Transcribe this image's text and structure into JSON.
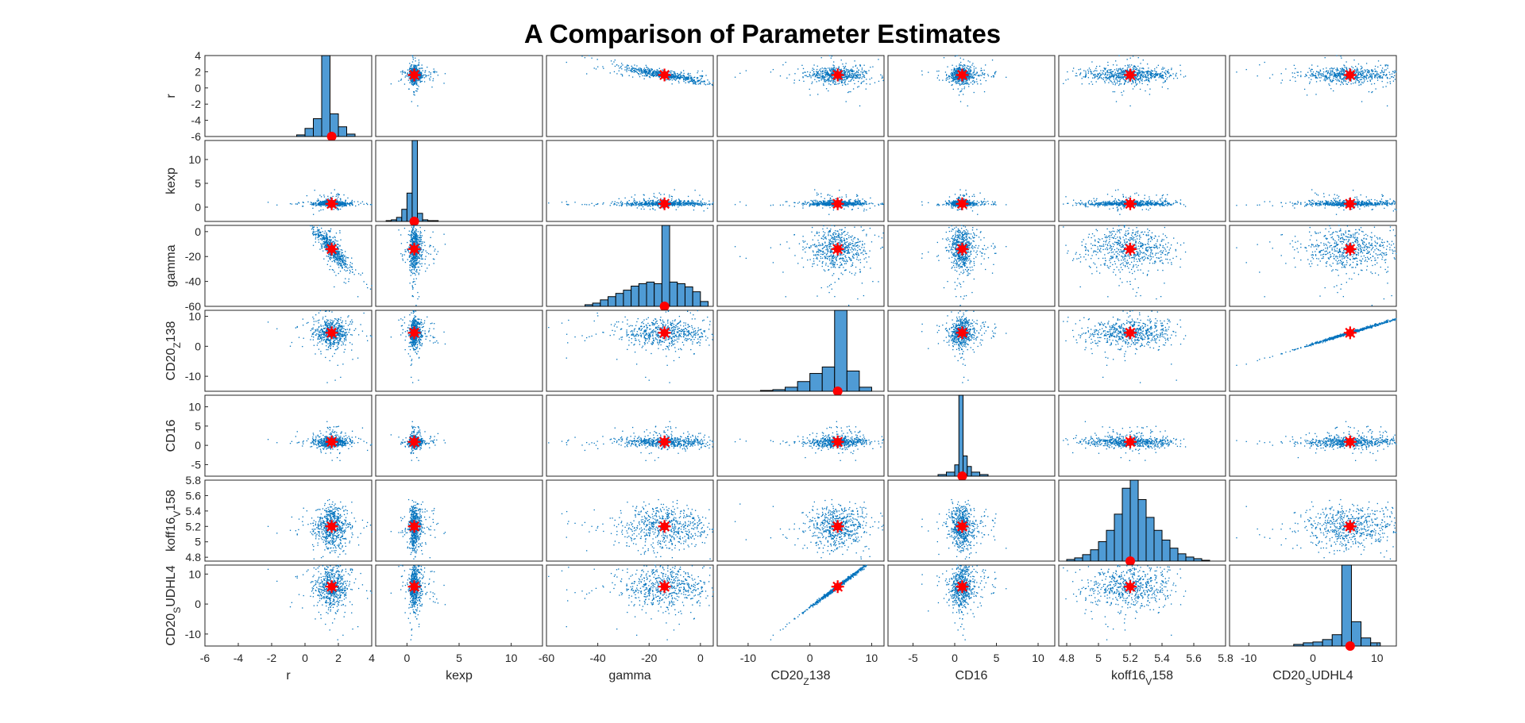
{
  "chart_data": {
    "type": "scatter",
    "title": "A Comparison of Parameter Estimates",
    "colors": {
      "points": "#0072BD",
      "bars": "#4F9BD5",
      "marker": "#FF0000"
    },
    "variables": [
      {
        "id": "r",
        "label": "r",
        "sub": "",
        "suf": "",
        "mean": 1.6,
        "sd": 0.45,
        "xlim": [
          -6,
          4
        ],
        "xticks": [
          -6,
          -4,
          -2,
          0,
          2,
          4
        ],
        "ylim": [
          -6,
          4
        ],
        "yticks": [
          -6,
          -4,
          -2,
          0,
          2,
          4
        ]
      },
      {
        "id": "kexp",
        "label": "kexp",
        "sub": "",
        "suf": "",
        "mean": 0.7,
        "sd": 0.6,
        "xlim": [
          -3,
          13
        ],
        "xticks": [
          0,
          5,
          10
        ],
        "ylim": [
          -3,
          14
        ],
        "yticks": [
          0,
          5,
          10
        ]
      },
      {
        "id": "gamma",
        "label": "gamma",
        "sub": "",
        "suf": "",
        "mean": -14,
        "sd": 10,
        "xlim": [
          -60,
          5
        ],
        "xticks": [
          -60,
          -40,
          -20,
          0
        ],
        "ylim": [
          -60,
          5
        ],
        "yticks": [
          -60,
          -40,
          -20,
          0
        ]
      },
      {
        "id": "cd20z138",
        "label": "CD20",
        "sub": "Z",
        "suf": "138",
        "mean": 4.5,
        "sd": 2.5,
        "xlim": [
          -15,
          12
        ],
        "xticks": [
          -10,
          0,
          10
        ],
        "ylim": [
          -15,
          12
        ],
        "yticks": [
          -10,
          0,
          10
        ]
      },
      {
        "id": "cd16",
        "label": "CD16",
        "sub": "",
        "suf": "",
        "mean": 0.9,
        "sd": 0.8,
        "xlim": [
          -8,
          12
        ],
        "xticks": [
          -5,
          0,
          5,
          10
        ],
        "ylim": [
          -8,
          13
        ],
        "yticks": [
          -5,
          0,
          5,
          10
        ]
      },
      {
        "id": "koff16v158",
        "label": "koff16",
        "sub": "V",
        "suf": "158",
        "mean": 5.2,
        "sd": 0.14,
        "xlim": [
          4.75,
          5.8
        ],
        "xticks": [
          4.8,
          5,
          5.2,
          5.4,
          5.6,
          5.8
        ],
        "ylim": [
          4.75,
          5.8
        ],
        "yticks": [
          4.8,
          5,
          5.2,
          5.4,
          5.6,
          5.8
        ]
      },
      {
        "id": "cd20sudhl4",
        "label": "CD20",
        "sub": "S",
        "suf": "UDHL4",
        "mean": 5.8,
        "sd": 2.0,
        "xlim": [
          -13,
          13
        ],
        "xticks": [
          -10,
          0,
          10
        ],
        "ylim": [
          -14,
          13
        ],
        "yticks": [
          -10,
          0,
          10
        ]
      }
    ],
    "histograms": [
      {
        "edges": [
          -0.5,
          0,
          0.5,
          1,
          1.5,
          2,
          2.5,
          3
        ],
        "heights": [
          0.02,
          0.1,
          0.22,
          1.0,
          0.28,
          0.12,
          0.03
        ]
      },
      {
        "edges": [
          -2,
          -1.5,
          -1,
          -0.5,
          0,
          0.5,
          1,
          1.5,
          2,
          2.5,
          3
        ],
        "heights": [
          0.01,
          0.02,
          0.05,
          0.15,
          0.35,
          1.0,
          0.1,
          0.02,
          0.01,
          0.01
        ]
      },
      {
        "edges": [
          -45,
          -42,
          -39,
          -36,
          -33,
          -30,
          -27,
          -24,
          -21,
          -18,
          -15,
          -12,
          -9,
          -6,
          -3,
          0,
          3
        ],
        "heights": [
          0.02,
          0.04,
          0.08,
          0.12,
          0.16,
          0.2,
          0.25,
          0.28,
          0.3,
          0.28,
          1.0,
          0.3,
          0.28,
          0.24,
          0.18,
          0.06
        ]
      },
      {
        "edges": [
          -8,
          -6,
          -4,
          -2,
          0,
          2,
          4,
          6,
          8,
          10
        ],
        "heights": [
          0.01,
          0.02,
          0.05,
          0.12,
          0.22,
          0.3,
          1.0,
          0.25,
          0.05
        ]
      },
      {
        "edges": [
          -2,
          -1,
          0,
          0.5,
          1,
          1.5,
          2,
          3,
          4
        ],
        "heights": [
          0.02,
          0.05,
          0.14,
          1.0,
          0.25,
          0.12,
          0.05,
          0.02
        ]
      },
      {
        "edges": [
          4.8,
          4.85,
          4.9,
          4.95,
          5.0,
          5.05,
          5.1,
          5.15,
          5.2,
          5.25,
          5.3,
          5.35,
          5.4,
          5.45,
          5.5,
          5.55,
          5.6,
          5.65,
          5.7
        ],
        "heights": [
          0.02,
          0.04,
          0.08,
          0.14,
          0.24,
          0.38,
          0.58,
          0.9,
          1.0,
          0.76,
          0.54,
          0.38,
          0.26,
          0.16,
          0.09,
          0.05,
          0.03,
          0.01
        ]
      },
      {
        "edges": [
          -3,
          -1.5,
          0,
          1.5,
          3,
          4.5,
          6,
          7.5,
          9,
          10.5
        ],
        "heights": [
          0.02,
          0.04,
          0.05,
          0.08,
          0.14,
          1.0,
          0.3,
          0.1,
          0.04
        ]
      }
    ]
  }
}
